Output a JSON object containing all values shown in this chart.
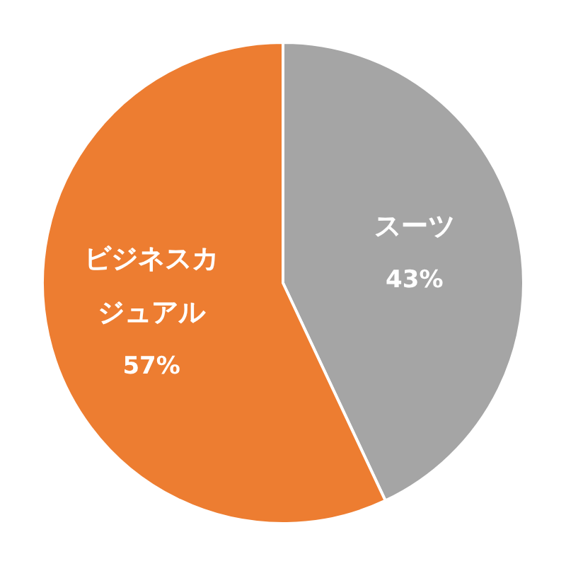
{
  "chart_data": {
    "type": "pie",
    "categories": [
      "スーツ",
      "ビジネスカジュアル"
    ],
    "values": [
      43,
      57
    ],
    "colors": [
      "#a5a5a5",
      "#ed7d31"
    ],
    "value_labels": [
      "43%",
      "57%"
    ]
  }
}
